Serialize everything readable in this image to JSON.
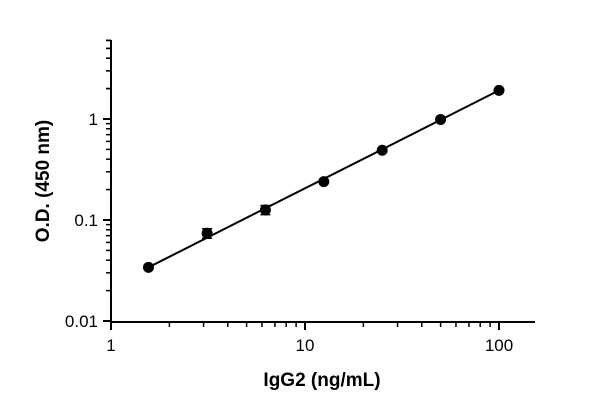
{
  "chart_data": {
    "type": "scatter",
    "xlabel": "IgG2 (ng/mL)",
    "ylabel": "O.D. (450 nm)",
    "x_scale": "log",
    "y_scale": "log",
    "xlim": [
      1,
      150
    ],
    "ylim": [
      0.01,
      5
    ],
    "x_ticks": [
      1,
      10,
      100
    ],
    "x_tick_labels": [
      "1",
      "10",
      "100"
    ],
    "y_ticks": [
      0.01,
      0.1,
      1
    ],
    "y_tick_labels": [
      "0.01",
      "0.1",
      "1"
    ],
    "grid": false,
    "legend": "none",
    "points": [
      {
        "x": 1.56,
        "y": 0.034,
        "err": 0.002
      },
      {
        "x": 3.13,
        "y": 0.074,
        "err": 0.008
      },
      {
        "x": 6.25,
        "y": 0.126,
        "err": 0.013
      },
      {
        "x": 12.5,
        "y": 0.24,
        "err": 0.01
      },
      {
        "x": 25,
        "y": 0.49,
        "err": 0.02
      },
      {
        "x": 50,
        "y": 0.99,
        "err": 0.03
      },
      {
        "x": 100,
        "y": 1.92,
        "err": 0.05
      }
    ],
    "fit_line": {
      "x": [
        1.56,
        100
      ],
      "y": [
        0.034,
        1.92
      ]
    },
    "color": "#000000"
  }
}
